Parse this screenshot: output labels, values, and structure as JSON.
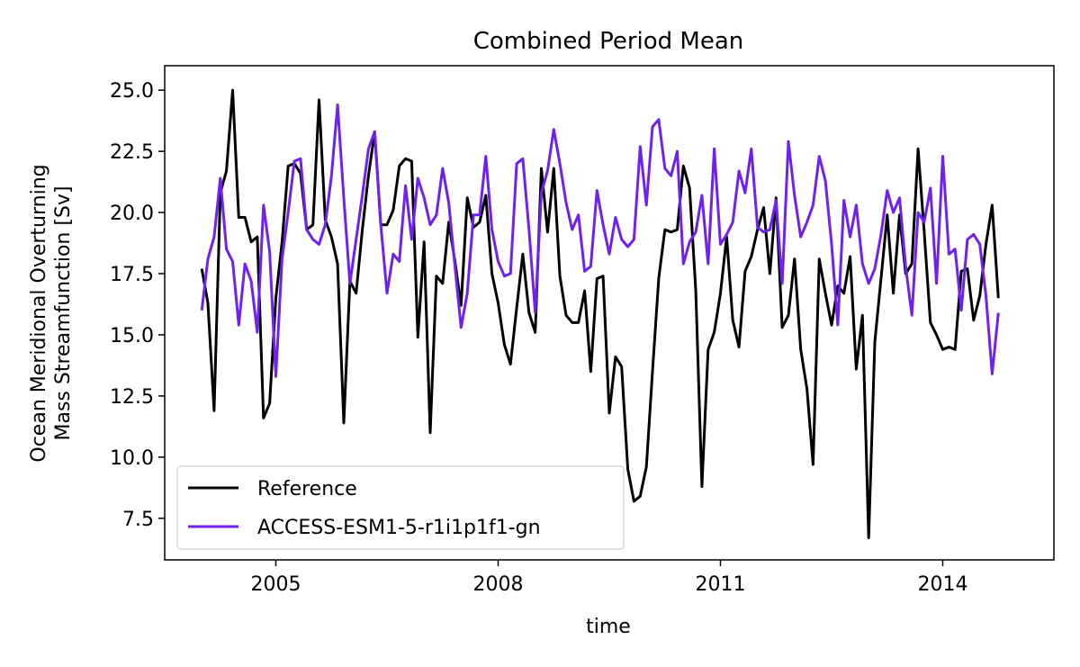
{
  "chart_data": {
    "type": "line",
    "title": "Combined Period Mean",
    "xlabel": "time",
    "ylabel_line1": "Ocean Meridional Overturning",
    "ylabel_line2": "Mass Streamfunction [Sv]",
    "xlim": [
      2003.5,
      2015.5
    ],
    "ylim": [
      5.8,
      26.0
    ],
    "x_ticks": [
      2005,
      2008,
      2011,
      2014
    ],
    "x_tick_labels": [
      "2005",
      "2008",
      "2011",
      "2014"
    ],
    "y_ticks": [
      7.5,
      10.0,
      12.5,
      15.0,
      17.5,
      20.0,
      22.5,
      25.0
    ],
    "y_tick_labels": [
      "7.5",
      "10.0",
      "12.5",
      "15.0",
      "17.5",
      "20.0",
      "22.5",
      "25.0"
    ],
    "legend_position": "lower-left",
    "x_start": 2004.0,
    "x_step_months": 1,
    "series": [
      {
        "name": "Reference",
        "color": "#000000",
        "values": [
          17.7,
          16.3,
          11.9,
          20.8,
          21.7,
          25.0,
          19.8,
          19.8,
          18.8,
          19.0,
          11.6,
          12.2,
          16.5,
          18.8,
          21.9,
          22.0,
          21.6,
          19.3,
          19.5,
          24.6,
          19.7,
          19.0,
          17.9,
          11.4,
          17.2,
          16.7,
          19.3,
          21.5,
          23.3,
          19.5,
          19.5,
          20.1,
          21.9,
          22.2,
          22.1,
          14.9,
          18.8,
          11.0,
          17.4,
          17.1,
          19.6,
          18.0,
          16.2,
          20.6,
          19.4,
          19.6,
          20.7,
          17.5,
          16.3,
          14.6,
          13.8,
          16.1,
          18.3,
          15.9,
          15.1,
          21.8,
          19.2,
          21.8,
          17.4,
          15.8,
          15.5,
          15.5,
          16.8,
          13.5,
          17.3,
          17.4,
          11.8,
          14.1,
          13.7,
          9.5,
          8.2,
          8.4,
          9.6,
          13.5,
          17.3,
          19.3,
          19.2,
          19.3,
          21.9,
          21.0,
          16.8,
          8.8,
          14.4,
          15.1,
          16.7,
          19.0,
          15.6,
          14.5,
          17.6,
          18.2,
          19.3,
          20.2,
          17.5,
          20.6,
          15.3,
          15.8,
          18.1,
          14.4,
          12.8,
          9.7,
          18.1,
          16.7,
          15.4,
          17.0,
          16.7,
          18.2,
          13.6,
          15.8,
          6.7,
          14.7,
          17.3,
          19.9,
          16.7,
          19.9,
          17.5,
          17.9,
          22.6,
          19.2,
          15.5,
          15.0,
          14.4,
          14.5,
          14.4,
          17.6,
          17.7,
          15.6,
          16.6,
          18.7,
          20.3,
          16.5
        ]
      },
      {
        "name": "ACCESS-ESM1-5-r1i1p1f1-gn",
        "color": "#7020f0",
        "values": [
          16.0,
          18.1,
          19.0,
          21.4,
          18.5,
          18.0,
          15.4,
          17.9,
          17.2,
          15.1,
          20.3,
          18.4,
          13.3,
          18.1,
          20.0,
          22.1,
          22.2,
          19.3,
          18.9,
          18.7,
          19.5,
          21.5,
          24.4,
          20.6,
          17.1,
          18.9,
          20.7,
          22.6,
          23.3,
          19.5,
          16.7,
          18.3,
          18.0,
          21.1,
          18.9,
          21.4,
          20.6,
          19.5,
          19.9,
          21.8,
          20.4,
          17.8,
          15.3,
          16.7,
          19.9,
          19.9,
          22.3,
          19.3,
          18.0,
          17.4,
          17.5,
          22.0,
          22.2,
          19.3,
          15.9,
          20.8,
          21.7,
          23.4,
          22.0,
          20.4,
          19.3,
          19.9,
          17.6,
          17.8,
          20.9,
          19.5,
          18.3,
          19.8,
          18.9,
          18.6,
          18.9,
          22.7,
          20.3,
          23.5,
          23.8,
          21.8,
          21.5,
          22.5,
          17.9,
          18.8,
          19.2,
          20.7,
          17.9,
          22.6,
          18.7,
          19.1,
          19.6,
          21.7,
          20.8,
          22.6,
          19.4,
          19.2,
          19.3,
          20.5,
          17.1,
          22.9,
          20.7,
          19.0,
          19.6,
          20.3,
          22.3,
          21.3,
          18.7,
          15.4,
          20.5,
          19.0,
          20.3,
          17.9,
          17.1,
          17.7,
          19.1,
          20.9,
          20.0,
          20.6,
          17.8,
          15.8,
          20.0,
          19.6,
          21.0,
          17.1,
          22.3,
          18.3,
          18.5,
          16.0,
          18.9,
          19.1,
          18.7,
          16.6,
          13.4,
          15.9
        ]
      }
    ]
  }
}
